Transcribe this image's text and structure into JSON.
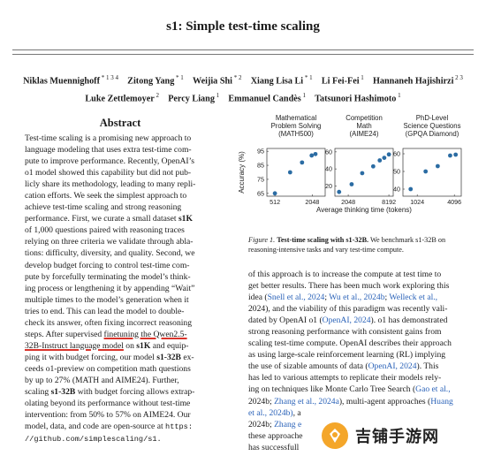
{
  "paper": {
    "title": "s1: Simple test-time scaling",
    "author_lines": [
      [
        {
          "name": "Niklas Muennighoff",
          "sup": "* 1 3 4"
        },
        {
          "name": "Zitong Yang",
          "sup": "* 1"
        },
        {
          "name": "Weijia Shi",
          "sup": "* 2"
        },
        {
          "name": "Xiang Lisa Li",
          "sup": "* 1"
        },
        {
          "name": "Li Fei-Fei",
          "sup": "1"
        },
        {
          "name": "Hannaneh Hajishirzi",
          "sup": "2 3"
        }
      ],
      [
        {
          "name": "Luke Zettlemoyer",
          "sup": "2"
        },
        {
          "name": "Percy Liang",
          "sup": "1"
        },
        {
          "name": "Emmanuel Candès",
          "sup": "1"
        },
        {
          "name": "Tatsunori Hashimoto",
          "sup": "1"
        }
      ]
    ],
    "abstract_title": "Abstract",
    "abstract_lines": [
      "Test-time scaling is a promising new approach to",
      "language modeling that uses extra test-time com-",
      "pute to improve performance. Recently, OpenAI’s",
      "o1 model showed this capability but did not pub-",
      "licly share its methodology, leading to many repli-",
      "cation efforts. We seek the simplest approach to",
      "achieve test-time scaling and strong reasoning",
      "performance. First, we curate a small dataset s1K",
      "of 1,000 questions paired with reasoning traces",
      "relying on three criteria we validate through abla-",
      "tions: difficulty, diversity, and quality. Second, we",
      "develop budget forcing to control test-time com-",
      "pute by forcefully terminating the model’s think-",
      "ing process or lengthening it by appending “Wait”",
      "multiple times to the model’s generation when it",
      "tries to end. This can lead the model to double-",
      "check its answer, often fixing incorrect reasoning",
      "steps. After supervised finetuning the Qwen2.5-",
      "32B-Instruct language model on s1K and equip-",
      "ping it with budget forcing, our model s1-32B ex-",
      "ceeds o1-preview on competition math questions",
      "by up to 27% (MATH and AIME24). Further,",
      "scaling s1-32B with budget forcing allows extrap-",
      "olating beyond its performance without test-time",
      "intervention: from 50% to 57% on AIME24. Our",
      "model, data, and code are open-source at https:",
      "//github.com/simplescaling/s1."
    ],
    "figure_caption_label": "Figure 1.",
    "figure_caption_bold": "Test-time scaling with s1-32B.",
    "figure_caption_rest": " We benchmark s1-32B on reasoning-intensive tasks and vary test-time compute.",
    "right_text_lines": [
      "of this approach is to increase the compute at test time to",
      "get better results. There has been much work exploring this",
      "idea (Snell et al., 2024; Wu et al., 2024b; Welleck et al.,",
      "2024), and the viability of this paradigm was recently vali-",
      "dated by OpenAI o1 (OpenAI, 2024). o1 has demonstrated",
      "strong reasoning performance with consistent gains from",
      "scaling test-time compute. OpenAI describes their approach",
      "as using large-scale reinforcement learning (RL) implying",
      "the use of sizable amounts of data (OpenAI, 2024). This",
      "has led to various attempts to replicate their models rely-",
      "ing on techniques like Monte Carlo Tree Search (Gao et al.,",
      "2024b; Zhang et al., 2024a), multi-agent approaches (Huang",
      "et al., 2024b), a",
      "2024b; Zhang e",
      "these approache",
      "has successfull"
    ],
    "watermark_text": "吉铺手游网"
  },
  "chart_data": {
    "type": "scatter",
    "ylabel": "Accuracy (%)",
    "xlabel": "Average thinking time (tokens)",
    "panels": [
      {
        "title": [
          "Mathematical",
          "Problem Solving",
          "(MATH500)"
        ],
        "yticks": [
          65,
          75,
          85,
          95
        ],
        "ylim": [
          63,
          97
        ],
        "xticks": [
          "512",
          "2048"
        ],
        "xlim": [
          380,
          3300
        ],
        "points": [
          [
            512,
            65
          ],
          [
            900,
            80
          ],
          [
            1400,
            87
          ],
          [
            2000,
            92
          ],
          [
            2300,
            93
          ]
        ]
      },
      {
        "title": [
          "Competition",
          "Math",
          "(AIME24)"
        ],
        "yticks": [
          20,
          40,
          60
        ],
        "ylim": [
          8,
          64
        ],
        "xticks": [
          "2048",
          "8192"
        ],
        "xlim": [
          1300,
          9500
        ],
        "points": [
          [
            1500,
            13
          ],
          [
            2300,
            22
          ],
          [
            3300,
            35
          ],
          [
            4800,
            43
          ],
          [
            6000,
            50
          ],
          [
            7000,
            53
          ],
          [
            8200,
            57
          ]
        ]
      },
      {
        "title": [
          "PhD-Level",
          "Science Questions",
          "(GPQA Diamond)"
        ],
        "yticks": [
          40,
          50,
          60
        ],
        "ylim": [
          36,
          63
        ],
        "xticks": [
          "1024",
          "4096"
        ],
        "xlim": [
          600,
          5300
        ],
        "points": [
          [
            800,
            40
          ],
          [
            1400,
            50
          ],
          [
            2200,
            53
          ],
          [
            3500,
            59
          ],
          [
            4300,
            59.5
          ]
        ]
      }
    ],
    "color": "#2b6ca3"
  }
}
